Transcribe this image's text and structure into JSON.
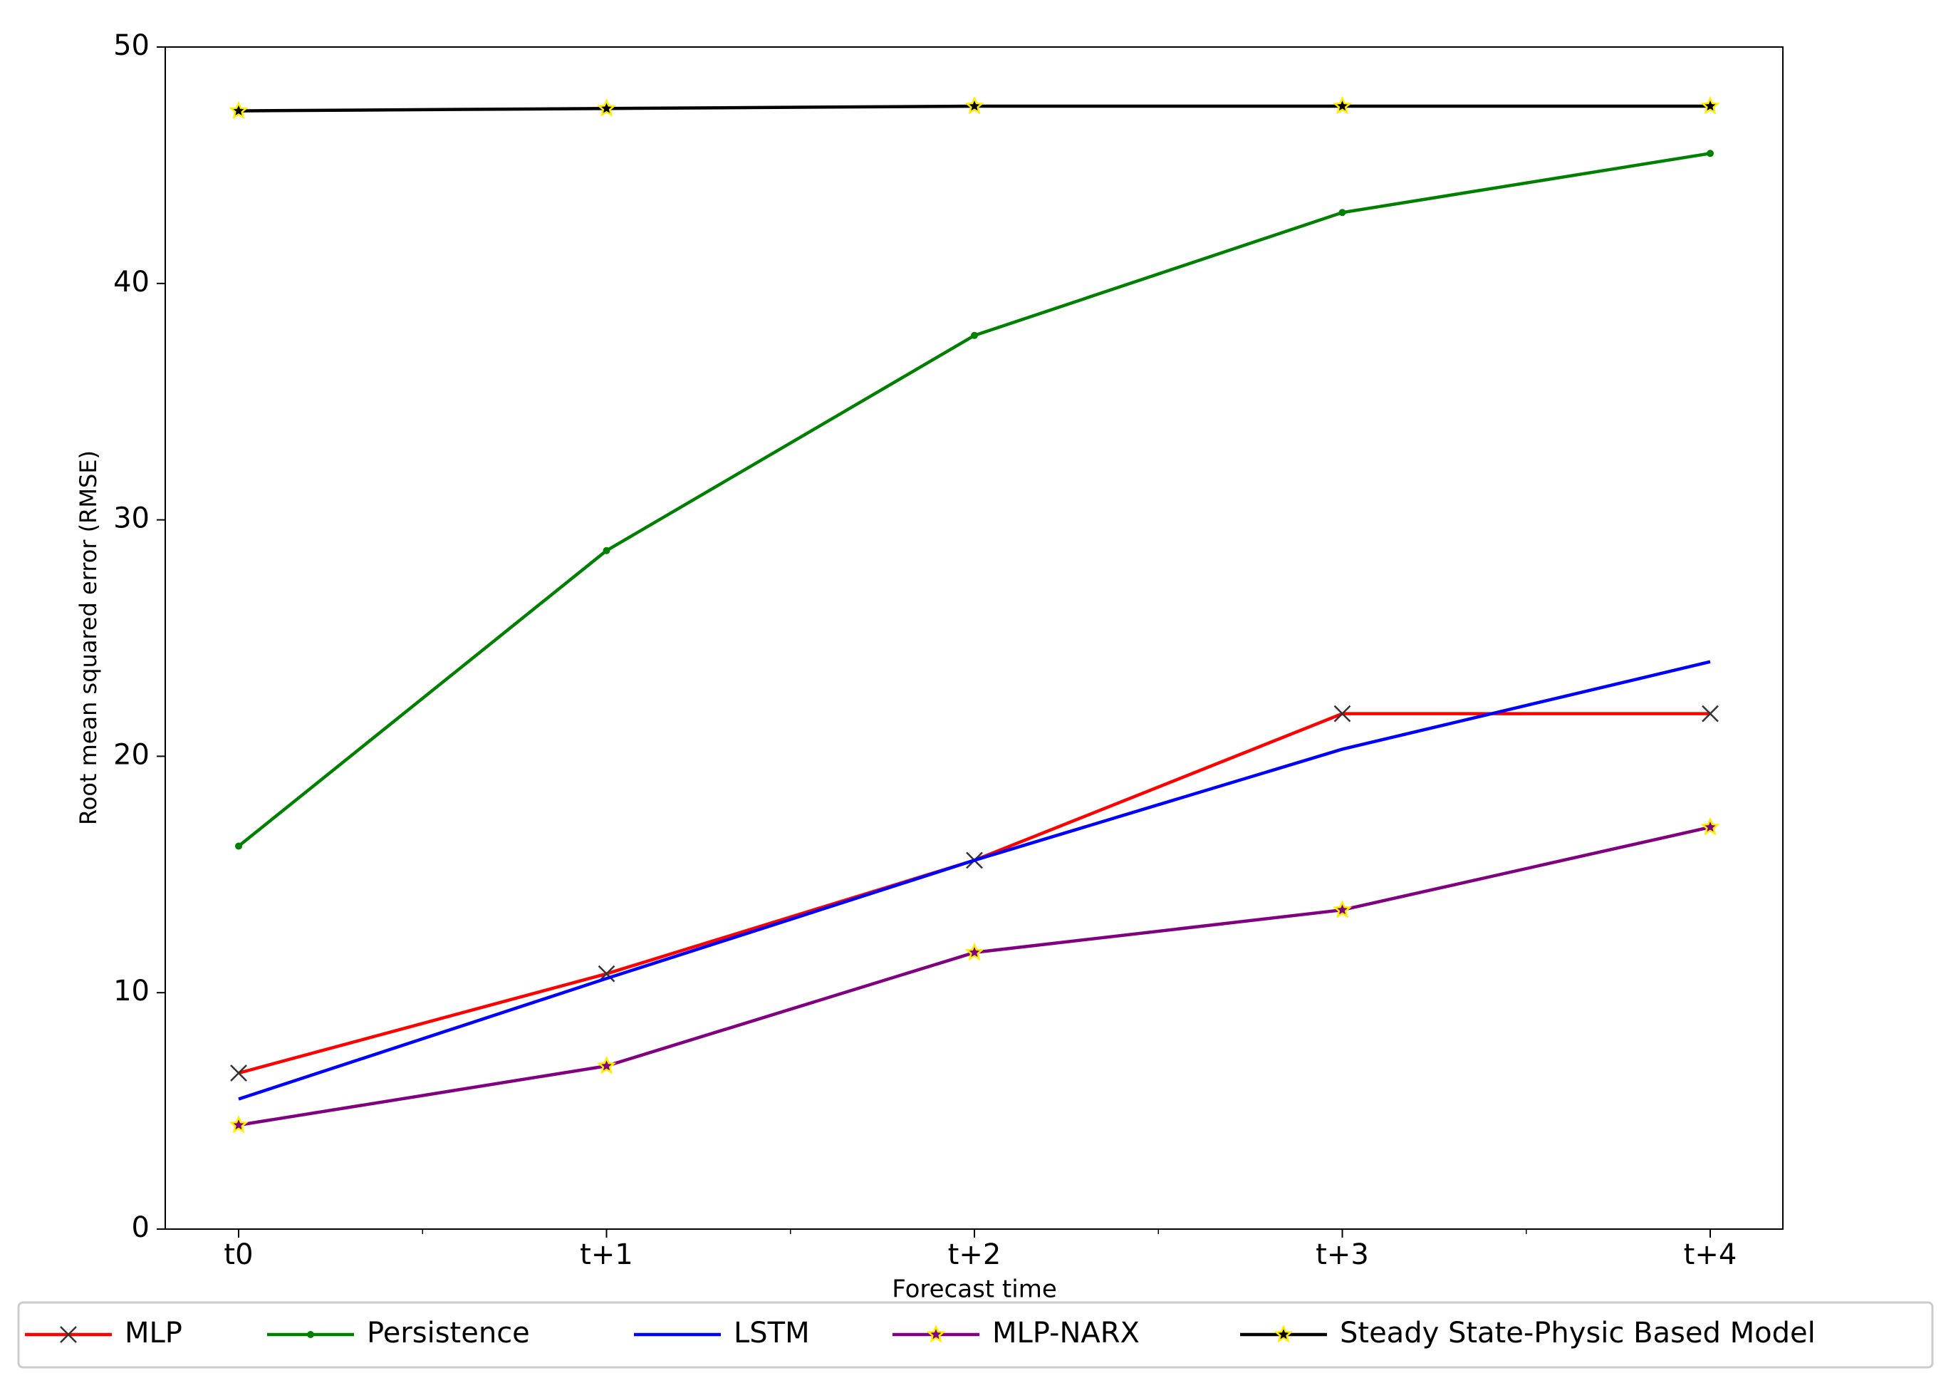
{
  "chart_data": {
    "type": "line",
    "x_label": "Forecast time",
    "y_label": "Root mean squared error (RMSE)",
    "categories": [
      "t0",
      "t+1",
      "t+2",
      "t+3",
      "t+4"
    ],
    "series": [
      {
        "name": "MLP",
        "color": "#ff0000",
        "marker": "x",
        "values": [
          6.6,
          10.8,
          15.6,
          21.8,
          21.8
        ]
      },
      {
        "name": "Persistence",
        "color": "#008000",
        "marker": "dot",
        "values": [
          16.2,
          28.7,
          37.8,
          43.0,
          45.5
        ]
      },
      {
        "name": "LSTM",
        "color": "#0000ff",
        "marker": "none",
        "values": [
          5.5,
          10.6,
          15.6,
          20.3,
          24.0
        ]
      },
      {
        "name": "MLP-NARX",
        "color": "#800080",
        "marker": "star",
        "values": [
          4.4,
          6.9,
          11.7,
          13.5,
          17.0
        ]
      },
      {
        "name": "Steady State-Physic Based Model",
        "color": "#000000",
        "marker": "star",
        "values": [
          47.3,
          47.4,
          47.5,
          47.5,
          47.5
        ]
      }
    ],
    "ylim": [
      0,
      50
    ],
    "yticks": [
      0,
      10,
      20,
      30,
      40,
      50
    ],
    "legend": "bottom",
    "grid": false
  }
}
